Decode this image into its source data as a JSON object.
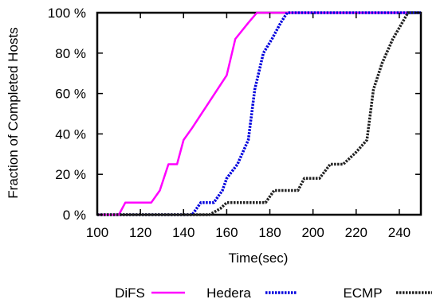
{
  "chart_data": {
    "type": "line",
    "title": "",
    "xlabel": "Time(sec)",
    "ylabel": "Fraction of Completed Hosts",
    "xlim": [
      100,
      250
    ],
    "ylim": [
      0,
      100
    ],
    "x_ticks": [
      100,
      120,
      140,
      160,
      180,
      200,
      220,
      240
    ],
    "x_tick_labels": [
      "100",
      "120",
      "140",
      "160",
      "180",
      "200",
      "220",
      "240"
    ],
    "y_ticks": [
      0,
      20,
      40,
      60,
      80,
      100
    ],
    "y_tick_labels": [
      "0 %",
      "20 %",
      "40 %",
      "60 %",
      "80 %",
      "100 %"
    ],
    "grid": false,
    "legend_position": "bottom",
    "series": [
      {
        "name": "DiFS",
        "color": "#ff00ff",
        "style": "solid",
        "points": [
          [
            100,
            0
          ],
          [
            110,
            0
          ],
          [
            113,
            6
          ],
          [
            120,
            6
          ],
          [
            125,
            6
          ],
          [
            129,
            12
          ],
          [
            133,
            25
          ],
          [
            137,
            25
          ],
          [
            140,
            37
          ],
          [
            144,
            43
          ],
          [
            160,
            69
          ],
          [
            164,
            87
          ],
          [
            170,
            95
          ],
          [
            174,
            100
          ],
          [
            250,
            100
          ]
        ]
      },
      {
        "name": "Hedera",
        "color": "#0000dd",
        "style": "dotted",
        "points": [
          [
            100,
            0
          ],
          [
            144,
            0
          ],
          [
            148,
            6
          ],
          [
            152,
            6
          ],
          [
            154,
            6
          ],
          [
            158,
            12
          ],
          [
            160,
            18
          ],
          [
            165,
            25
          ],
          [
            170,
            37
          ],
          [
            173,
            62
          ],
          [
            177,
            80
          ],
          [
            181,
            87
          ],
          [
            185,
            95
          ],
          [
            188,
            100
          ],
          [
            250,
            100
          ]
        ]
      },
      {
        "name": "ECMP",
        "color": "#222222",
        "style": "dotted",
        "points": [
          [
            100,
            0
          ],
          [
            152,
            0
          ],
          [
            157,
            3
          ],
          [
            160,
            6
          ],
          [
            178,
            6
          ],
          [
            182,
            12
          ],
          [
            193,
            12
          ],
          [
            196,
            18
          ],
          [
            203,
            18
          ],
          [
            208,
            25
          ],
          [
            214,
            25
          ],
          [
            220,
            31
          ],
          [
            225,
            37
          ],
          [
            228,
            62
          ],
          [
            232,
            75
          ],
          [
            237,
            87
          ],
          [
            244,
            100
          ],
          [
            250,
            100
          ]
        ]
      }
    ]
  }
}
